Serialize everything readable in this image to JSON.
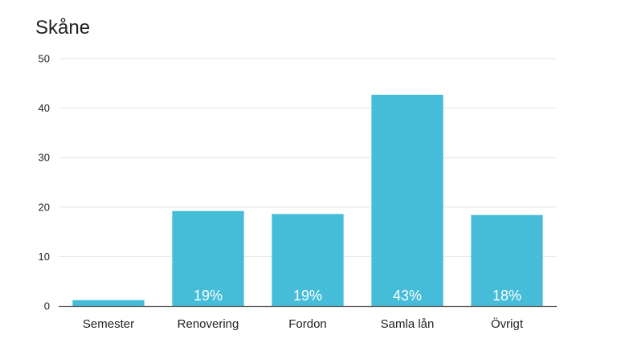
{
  "chart_data": {
    "type": "bar",
    "title": "Skåne",
    "xlabel": "",
    "ylabel": "",
    "categories": [
      "Semester",
      "Renovering",
      "Fordon",
      "Samla lån",
      "Övrigt"
    ],
    "values": [
      1.2,
      19.2,
      18.6,
      42.7,
      18.4
    ],
    "data_labels": [
      "",
      "19%",
      "19%",
      "43%",
      "18%"
    ],
    "ylim": [
      0,
      50
    ],
    "yticks": [
      0,
      10,
      20,
      30,
      40,
      50
    ],
    "grid": true,
    "legend": "none",
    "bar_color": "#45bdd8",
    "grid_color": "#e3e3e3",
    "axis_color": "#555555"
  }
}
